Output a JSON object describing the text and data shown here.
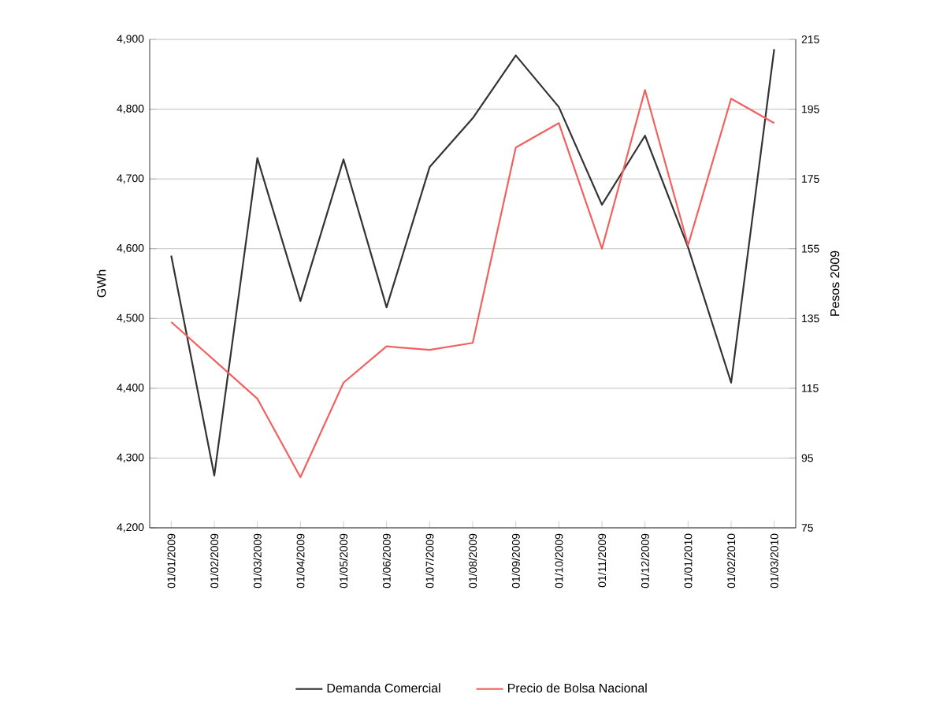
{
  "chart_data": {
    "type": "line",
    "ylabel": "GWh",
    "y2label": "Pesos 2009",
    "categories": [
      "01/01/2009",
      "01/02/2009",
      "01/03/2009",
      "01/04/2009",
      "01/05/2009",
      "01/06/2009",
      "01/07/2009",
      "01/08/2009",
      "01/09/2009",
      "01/10/2009",
      "01/11/2009",
      "01/12/2009",
      "01/01/2010",
      "01/02/2010",
      "01/03/2010"
    ],
    "series": [
      {
        "name": "Demanda Comercial",
        "color": "#333333",
        "values": [
          4590,
          4275,
          4730,
          4525,
          4728,
          4516,
          4717,
          4787,
          4877,
          4803,
          4663,
          4762,
          4602,
          4408,
          4886
        ]
      },
      {
        "name": "Precio de Bolsa Nacional",
        "color": "#f26060",
        "axis": "y2",
        "values": [
          134,
          123,
          112,
          89.5,
          116.6,
          127,
          126,
          128,
          184,
          191,
          155,
          200.5,
          156,
          198,
          191
        ]
      }
    ],
    "ylim": [
      4200,
      4900
    ],
    "yticks": [
      {
        "value": 4200,
        "label": "4,200"
      },
      {
        "value": 4300,
        "label": "4,300"
      },
      {
        "value": 4400,
        "label": "4,400"
      },
      {
        "value": 4500,
        "label": "4,500"
      },
      {
        "value": 4600,
        "label": "4,600"
      },
      {
        "value": 4700,
        "label": "4,700"
      },
      {
        "value": 4800,
        "label": "4,800"
      },
      {
        "value": 4900,
        "label": "4,900"
      }
    ],
    "y2lim": [
      75,
      215
    ],
    "y2ticks": [
      75,
      95,
      115,
      135,
      155,
      175,
      195,
      215
    ],
    "grid": "y",
    "legend": "bottom"
  }
}
